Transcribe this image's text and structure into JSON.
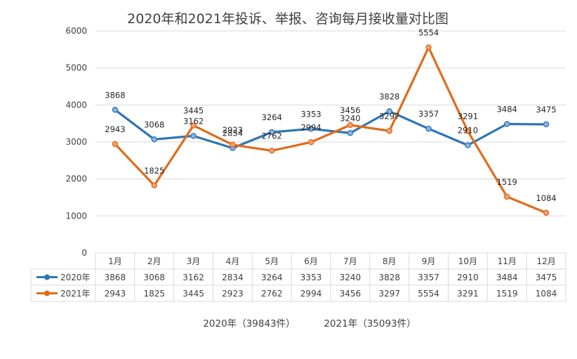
{
  "chart_data": {
    "type": "line",
    "title": "2020年和2021年投诉、举报、咨询每月接收量对比图",
    "categories": [
      "1月",
      "2月",
      "3月",
      "4月",
      "5月",
      "6月",
      "7月",
      "8月",
      "9月",
      "10月",
      "11月",
      "12月"
    ],
    "series": [
      {
        "name": "2020年",
        "values": [
          3868,
          3068,
          3162,
          2834,
          3264,
          3353,
          3240,
          3828,
          3357,
          2910,
          3484,
          3475
        ],
        "color": "#2e75b6"
      },
      {
        "name": "2021年",
        "values": [
          2943,
          1825,
          3445,
          2923,
          2762,
          2994,
          3456,
          3297,
          5554,
          3291,
          1519,
          1084
        ],
        "color": "#e06c1b"
      }
    ],
    "ylim": [
      0,
      6000
    ],
    "yticks": [
      "0",
      "1000",
      "2000",
      "3000",
      "4000",
      "5000",
      "6000"
    ],
    "grid": true,
    "legend": "data-table"
  },
  "footer": {
    "total_2020": "2020年（39843件）",
    "total_2021": "2021年（35093件）"
  }
}
